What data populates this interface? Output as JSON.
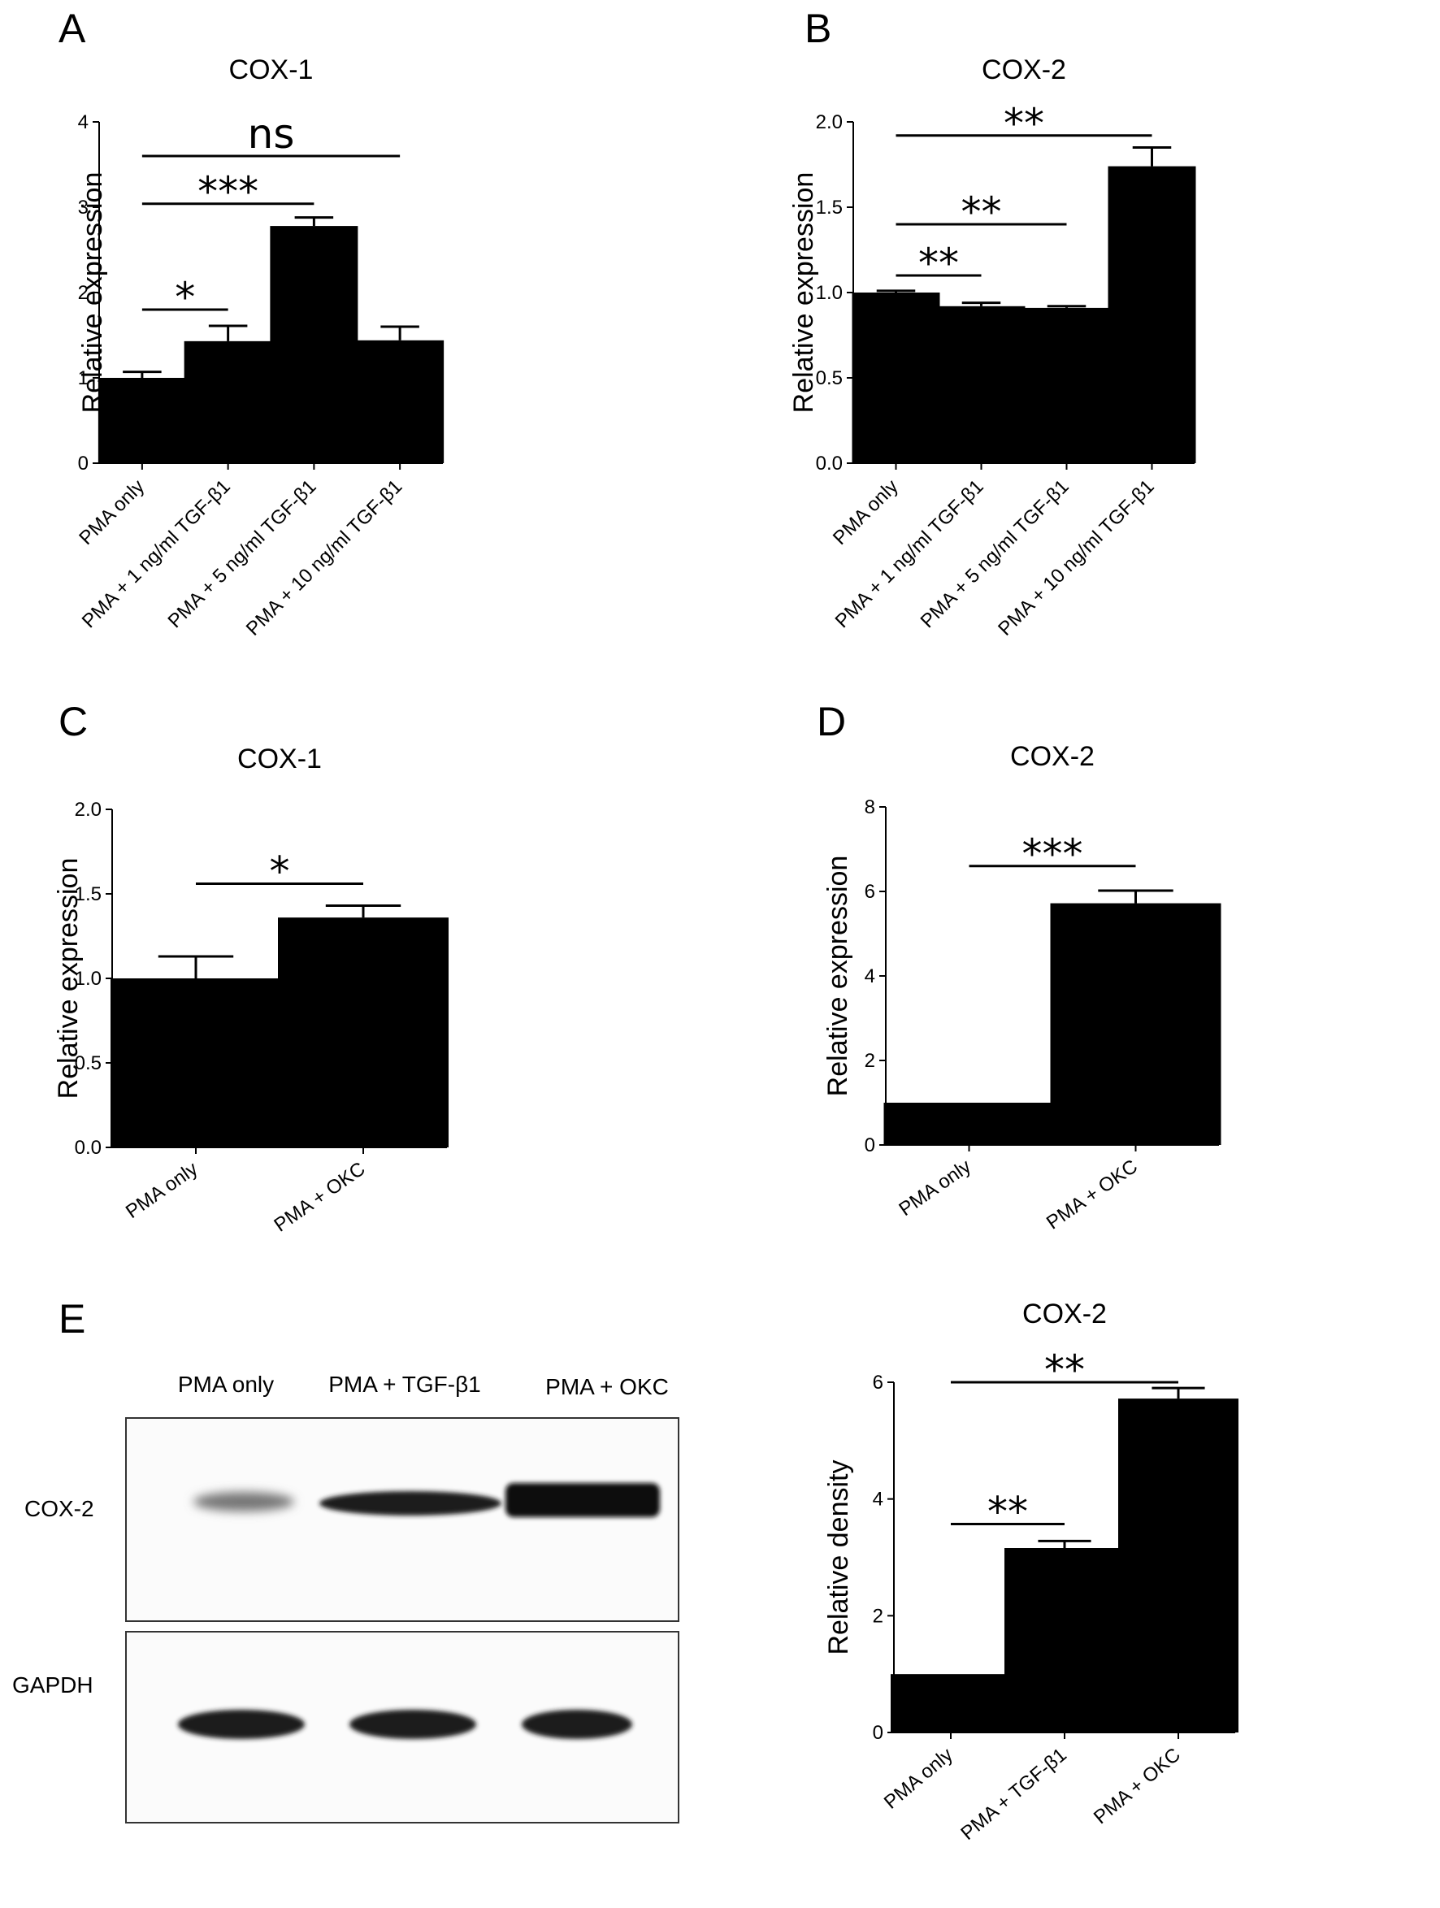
{
  "panels": [
    {
      "letter": "A"
    },
    {
      "letter": "B"
    },
    {
      "letter": "C"
    },
    {
      "letter": "D"
    },
    {
      "letter": "E"
    }
  ],
  "chart_data": [
    {
      "id": "A",
      "type": "bar",
      "title": "COX-1",
      "ylabel": "Relative expression",
      "categories": [
        "PMA only",
        "PMA + 1 ng/ml TGF-β1",
        "PMA + 5 ng/ml TGF-β1",
        "PMA + 10 ng/ml TGF-β1"
      ],
      "values": [
        1.0,
        1.43,
        2.78,
        1.44
      ],
      "errors": [
        0.07,
        0.18,
        0.1,
        0.16
      ],
      "ylim": [
        0,
        4
      ],
      "yticks": [
        "0",
        "1",
        "2",
        "3",
        "4"
      ],
      "tick_values": [
        0,
        1,
        2,
        3,
        4
      ],
      "significance": [
        {
          "from": 0,
          "to": 3,
          "label": "ns",
          "y": 3.6
        },
        {
          "from": 0,
          "to": 2,
          "label": "***",
          "y": 3.04
        },
        {
          "from": 0,
          "to": 1,
          "label": "*",
          "y": 1.8
        }
      ]
    },
    {
      "id": "B",
      "type": "bar",
      "title": "COX-2",
      "ylabel": "Relative expression",
      "categories": [
        "PMA only",
        "PMA + 1 ng/ml TGF-β1",
        "PMA + 5 ng/ml TGF-β1",
        "PMA + 10 ng/ml TGF-β1"
      ],
      "values": [
        1.0,
        0.92,
        0.91,
        1.74
      ],
      "errors": [
        0.01,
        0.02,
        0.01,
        0.11
      ],
      "ylim": [
        0,
        2
      ],
      "yticks": [
        "0.0",
        "0.5",
        "1.0",
        "1.5",
        "2.0"
      ],
      "tick_values": [
        0,
        0.5,
        1.0,
        1.5,
        2.0
      ],
      "significance": [
        {
          "from": 0,
          "to": 3,
          "label": "**",
          "y": 1.92
        },
        {
          "from": 0,
          "to": 2,
          "label": "**",
          "y": 1.4
        },
        {
          "from": 0,
          "to": 1,
          "label": "**",
          "y": 1.1
        }
      ]
    },
    {
      "id": "C",
      "type": "bar",
      "title": "COX-1",
      "ylabel": "Relative expression",
      "categories": [
        "PMA only",
        "PMA + OKC"
      ],
      "values": [
        1.0,
        1.36
      ],
      "errors": [
        0.13,
        0.07
      ],
      "ylim": [
        0,
        2
      ],
      "yticks": [
        "0.0",
        "0.5",
        "1.0",
        "1.5",
        "2.0"
      ],
      "tick_values": [
        0,
        0.5,
        1.0,
        1.5,
        2.0
      ],
      "significance": [
        {
          "from": 0,
          "to": 1,
          "label": "*",
          "y": 1.56
        }
      ]
    },
    {
      "id": "D",
      "type": "bar",
      "title": "COX-2",
      "ylabel": "Relative expression",
      "categories": [
        "PMA only",
        "PMA + OKC"
      ],
      "values": [
        1.0,
        5.72
      ],
      "errors": [
        0.0,
        0.3
      ],
      "ylim": [
        0,
        8
      ],
      "yticks": [
        "0",
        "2",
        "4",
        "6",
        "8"
      ],
      "tick_values": [
        0,
        2,
        4,
        6,
        8
      ],
      "significance": [
        {
          "from": 0,
          "to": 1,
          "label": "***",
          "y": 6.6
        }
      ]
    },
    {
      "id": "E",
      "type": "bar",
      "title": "COX-2",
      "ylabel": "Relative density",
      "categories": [
        "PMA only",
        "PMA + TGF-β1",
        "PMA + OKC"
      ],
      "values": [
        1.0,
        3.16,
        5.72
      ],
      "errors": [
        0.0,
        0.12,
        0.18
      ],
      "ylim": [
        0,
        6
      ],
      "yticks": [
        "0",
        "2",
        "4",
        "6"
      ],
      "tick_values": [
        0,
        2,
        4,
        6
      ],
      "significance": [
        {
          "from": 0,
          "to": 2,
          "label": "**",
          "y": 6.0
        },
        {
          "from": 0,
          "to": 1,
          "label": "**",
          "y": 3.57
        }
      ]
    }
  ],
  "western_blot": {
    "lanes": [
      "PMA only",
      "PMA + TGF-β1",
      "PMA + OKC"
    ],
    "rows": [
      "COX-2",
      "GAPDH"
    ]
  }
}
